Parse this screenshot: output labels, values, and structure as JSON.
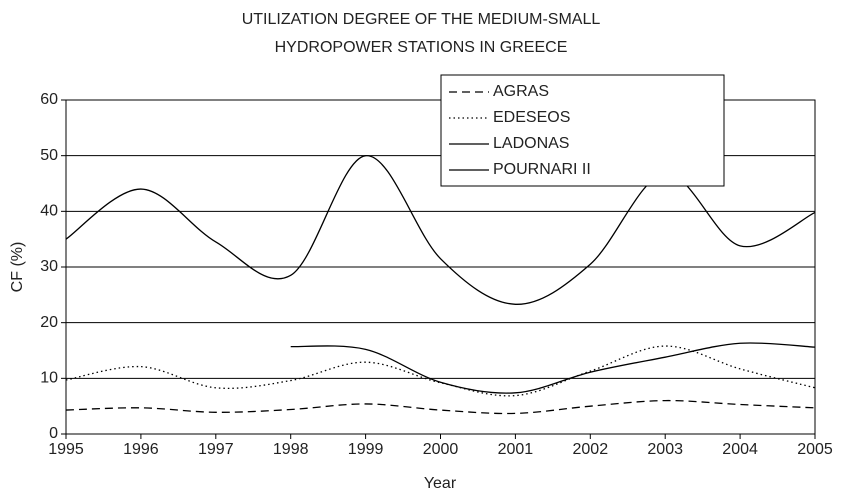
{
  "chart_data": {
    "type": "line",
    "title": [
      "UTILIZATION DEGREE OF THE MEDIUM-SMALL",
      "HYDROPOWER STATIONS IN GREECE"
    ],
    "x_label": "Year",
    "y_label": "CF (%)",
    "x": [
      1995,
      1996,
      1997,
      1998,
      1999,
      2000,
      2001,
      2002,
      2003,
      2004,
      2005
    ],
    "xlim": [
      1995,
      2005
    ],
    "xticks": [
      1995,
      1996,
      1997,
      1998,
      1999,
      2000,
      2001,
      2002,
      2003,
      2004,
      2005
    ],
    "ylim": [
      0,
      60
    ],
    "yticks": [
      0,
      10,
      20,
      30,
      40,
      50,
      60
    ],
    "grid": true,
    "series": [
      {
        "name": "AGRAS",
        "color": "#000000",
        "dash": "dashed",
        "values": [
          4.3,
          4.7,
          3.9,
          4.4,
          5.4,
          4.3,
          3.7,
          5.0,
          6.0,
          5.3,
          4.7
        ]
      },
      {
        "name": "EDESEOS",
        "color": "#000000",
        "dash": "dotted",
        "values": [
          9.7,
          12.1,
          8.3,
          9.6,
          12.9,
          9.2,
          6.9,
          11.3,
          15.8,
          11.7,
          8.3
        ]
      },
      {
        "name": "LADONAS",
        "color": "#000000",
        "dash": "solid",
        "values": [
          35,
          44,
          34.5,
          28.5,
          50,
          31.5,
          23.3,
          30.5,
          46.8,
          33.8,
          39.8
        ]
      },
      {
        "name": "POURNARI II",
        "color": "#000000",
        "dash": "solid",
        "values": [
          null,
          null,
          null,
          15.7,
          15.2,
          9.3,
          7.4,
          11.1,
          13.8,
          16.3,
          15.6
        ]
      }
    ]
  }
}
